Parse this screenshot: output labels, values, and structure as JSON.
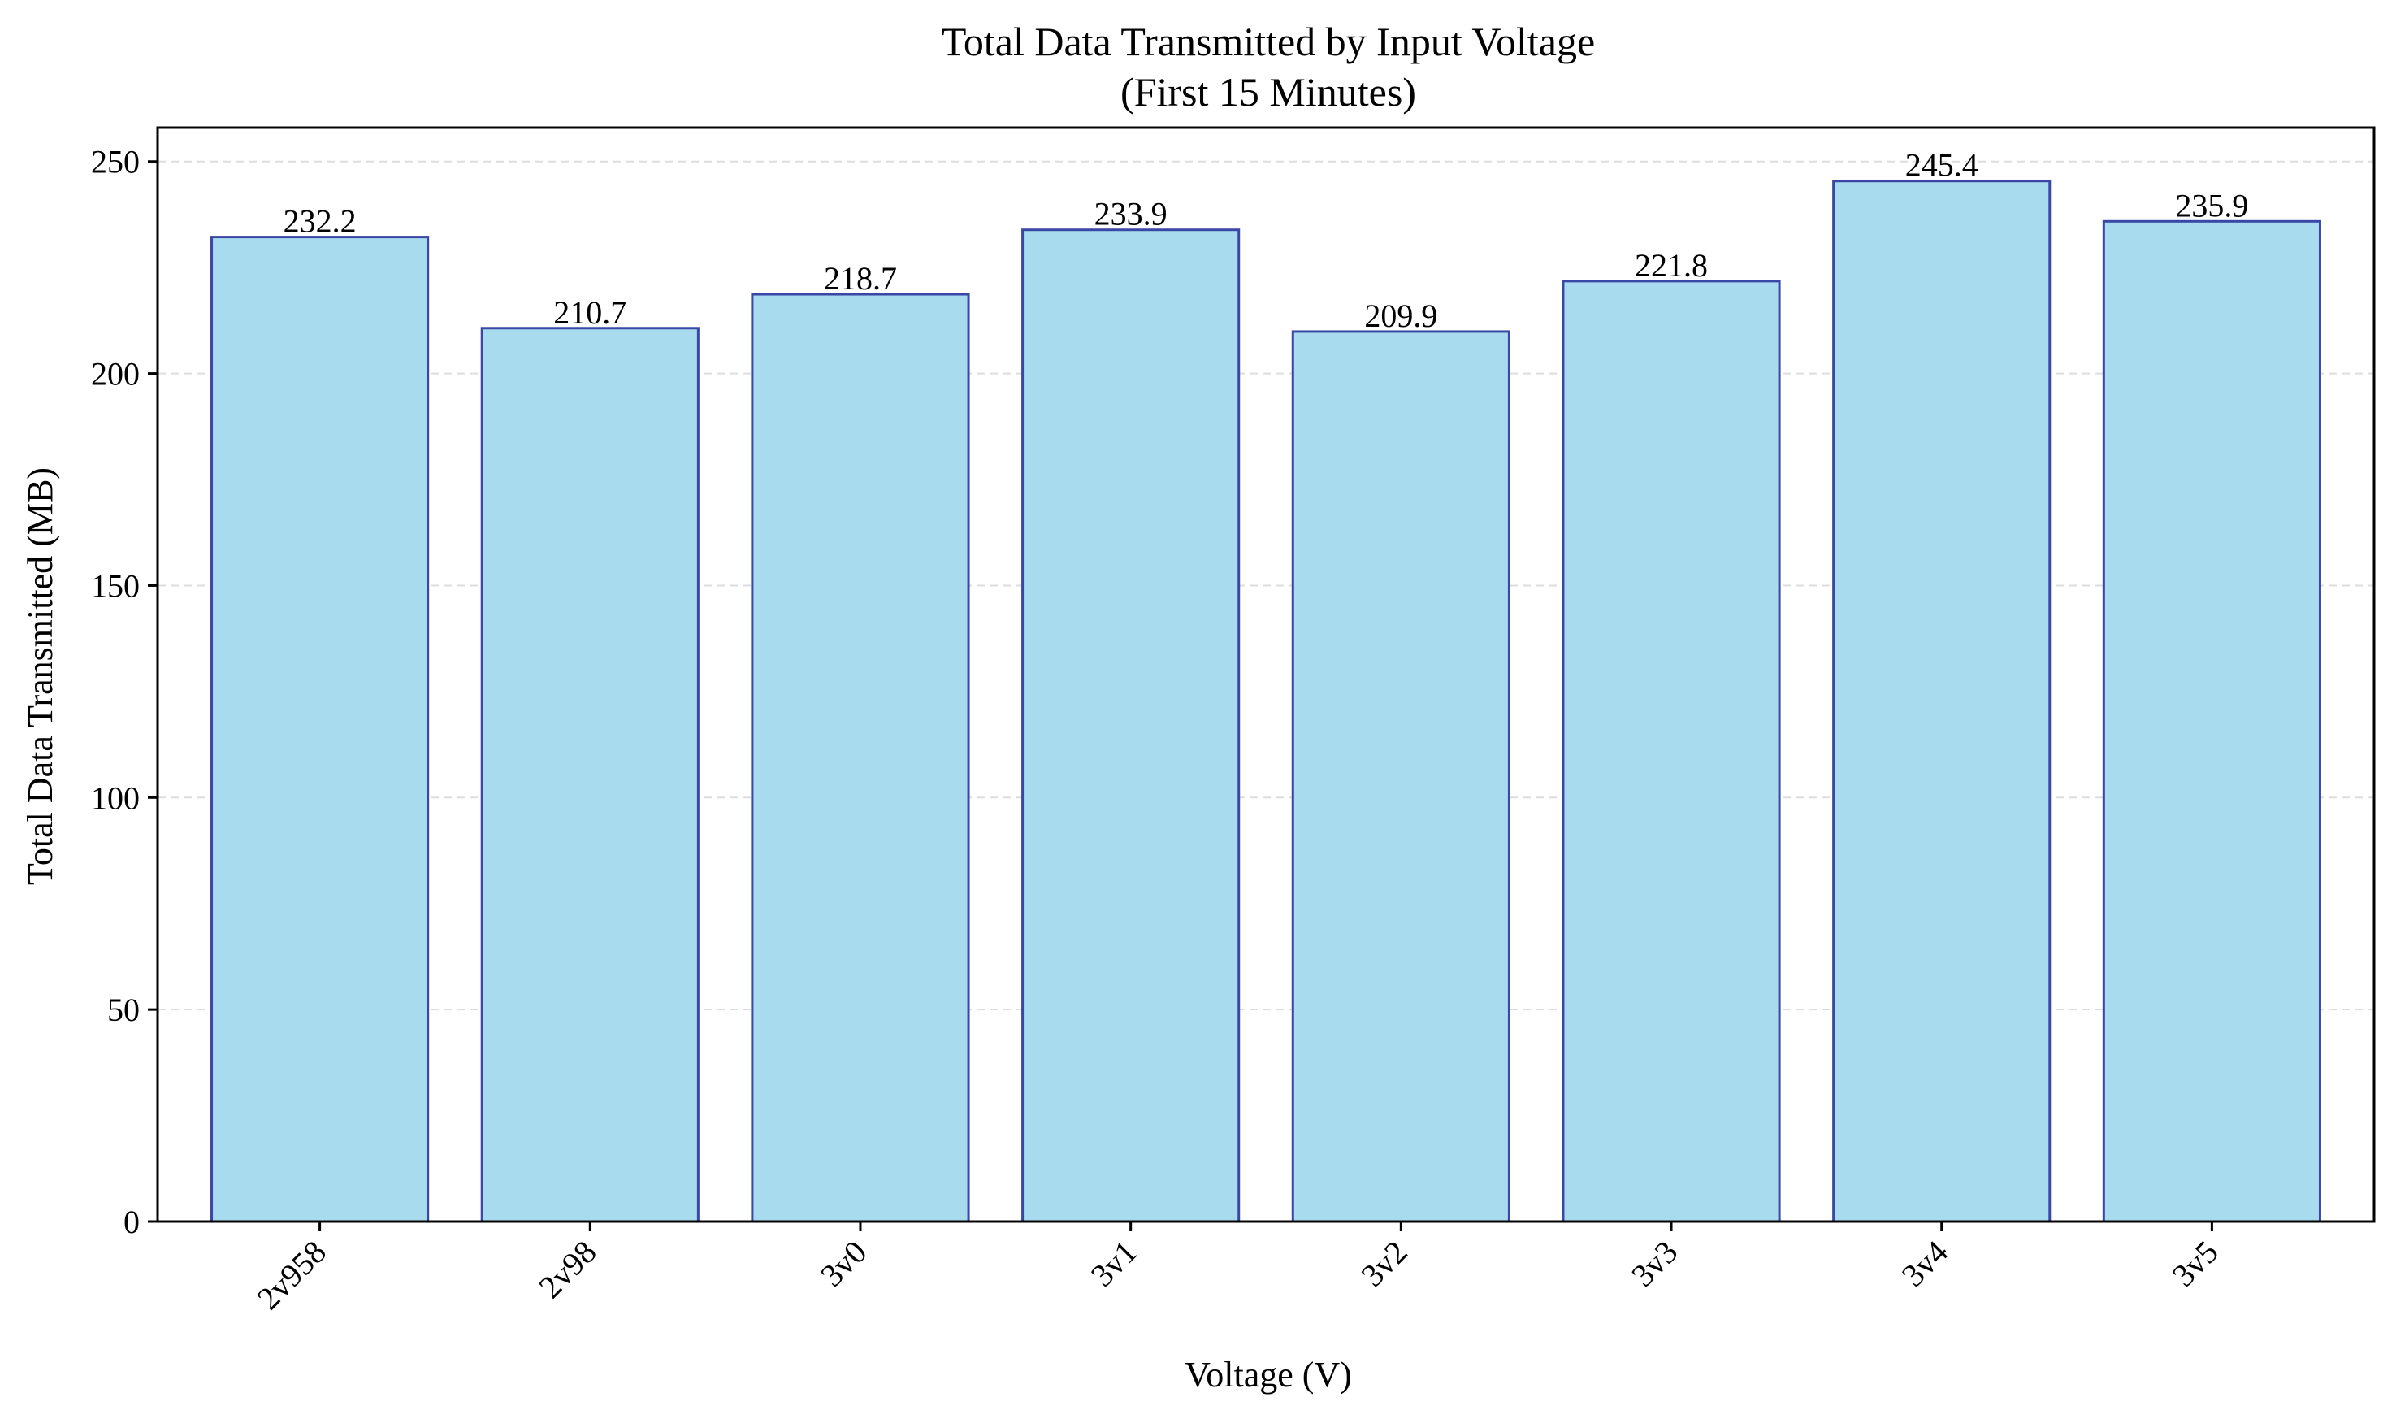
{
  "chart_data": {
    "type": "bar",
    "title": "Total Data Transmitted by Input Voltage",
    "subtitle": "(First 15 Minutes)",
    "xlabel": "Voltage (V)",
    "ylabel": "Total Data Transmitted (MB)",
    "categories": [
      "2v958",
      "2v98",
      "3v0",
      "3v1",
      "3v2",
      "3v3",
      "3v4",
      "3v5"
    ],
    "values": [
      232.2,
      210.7,
      218.7,
      233.9,
      209.9,
      221.8,
      245.4,
      235.9
    ],
    "value_labels": [
      "232.2",
      "210.7",
      "218.7",
      "233.9",
      "209.9",
      "221.8",
      "245.4",
      "235.9"
    ],
    "ylim": [
      0,
      258
    ],
    "yticks": [
      0,
      50,
      100,
      150,
      200,
      250
    ],
    "ytick_labels": [
      "0",
      "50",
      "100",
      "150",
      "200",
      "250"
    ],
    "grid": "y-dashed",
    "legend": "none",
    "colors": {
      "bar_fill": "#a9dbee",
      "bar_edge": "#3a47a6",
      "grid": "#dddddd",
      "axis": "#000000"
    }
  }
}
